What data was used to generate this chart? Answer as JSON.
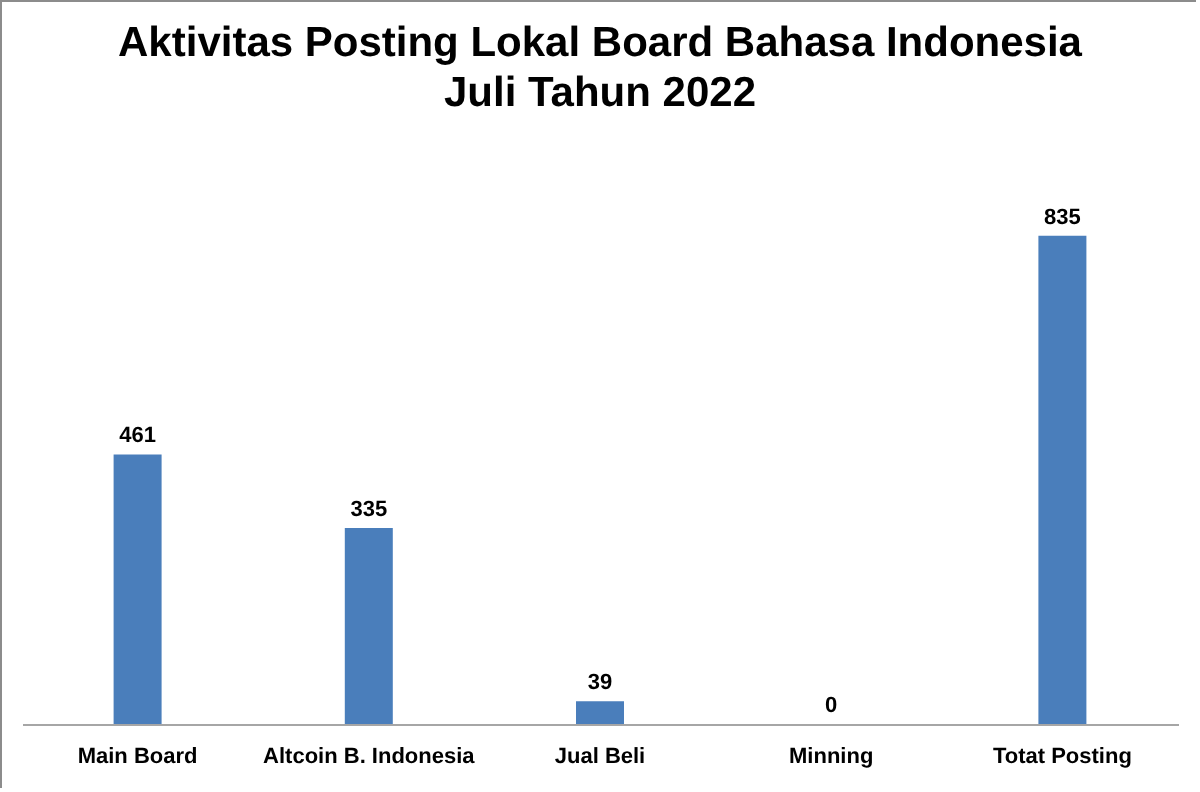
{
  "chart_data": {
    "type": "bar",
    "title": "Aktivitas Posting Lokal Board Bahasa Indonesia",
    "subtitle": "Juli Tahun 2022",
    "categories": [
      "Main Board",
      "Altcoin B. Indonesia",
      "Jual Beli",
      "Minning",
      "Totat Posting"
    ],
    "values": [
      461,
      335,
      39,
      0,
      835
    ],
    "color": "#4a7ebb",
    "data_labels": true,
    "grid": false
  }
}
